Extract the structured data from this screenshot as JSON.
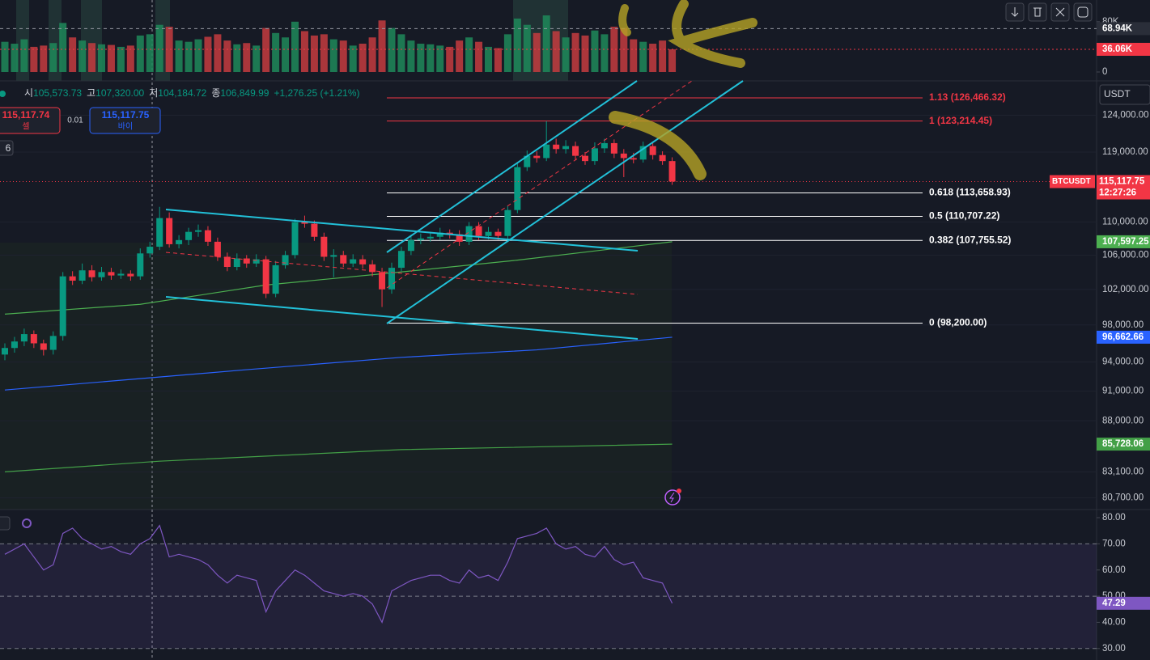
{
  "chart_data": {
    "type": "candlestick",
    "symbol": "BTCUSDT",
    "quote_currency": "USDT",
    "header": [
      {
        "label": "시",
        "value": "105,573.73"
      },
      {
        "label": "고",
        "value": "107,320.00"
      },
      {
        "label": "저",
        "value": "104,184.72"
      },
      {
        "label": "종",
        "value": "106,849.99"
      }
    ],
    "change": "+1,276.25 (+1.21%)",
    "sell": {
      "price": "115,117.74",
      "label": "셀"
    },
    "spread": "0.01",
    "buy": {
      "price": "115,117.75",
      "label": "바이"
    },
    "interval_badge": "6",
    "yscale": "log",
    "ylim": [
      79800,
      128900
    ],
    "yticks": [
      {
        "value": 124000,
        "label": "124,000.00"
      },
      {
        "value": 119000,
        "label": "119,000.00"
      },
      {
        "value": 110000,
        "label": "110,000.00"
      },
      {
        "value": 106000,
        "label": "106,000.00"
      },
      {
        "value": 102000,
        "label": "102,000.00"
      },
      {
        "value": 98000,
        "label": "98,000.00"
      },
      {
        "value": 94000,
        "label": "94,000.00"
      },
      {
        "value": 91000,
        "label": "91,000.00"
      },
      {
        "value": 88000,
        "label": "88,000.00"
      },
      {
        "value": 83100,
        "label": "83,100.00"
      },
      {
        "value": 80700,
        "label": "80,700.00"
      }
    ],
    "grid": true,
    "up_color": "#089981",
    "down_color": "#f23645",
    "open": [
      94800,
      95500,
      96200,
      97000,
      96000,
      95300,
      96800,
      103500,
      103000,
      104200,
      103400,
      104000,
      103600,
      103800,
      103500,
      106200,
      107000,
      110500,
      107300,
      107800,
      108800,
      109000,
      107600,
      105800,
      104600,
      105600,
      105000,
      105500,
      101500,
      104800,
      106000,
      110000,
      109800,
      108200,
      105800,
      106000,
      105000,
      105500,
      104900,
      104000,
      102000,
      104500,
      106500,
      107800,
      108000,
      108200,
      108700,
      108500,
      107600,
      109500,
      108300,
      108800,
      108300,
      111500,
      117000,
      118500,
      118200,
      120000,
      119400,
      119800,
      118500,
      117800,
      119500,
      120200,
      118800,
      118200,
      118000,
      119800,
      118600,
      117800
    ],
    "high": [
      96000,
      96700,
      97600,
      97400,
      96400,
      97300,
      104000,
      104100,
      105000,
      104800,
      104600,
      104500,
      104300,
      104200,
      106800,
      107600,
      111900,
      111200,
      108400,
      109300,
      109700,
      109500,
      108100,
      106300,
      106200,
      106000,
      106100,
      105900,
      105300,
      106500,
      110400,
      110800,
      110200,
      108700,
      106700,
      106500,
      106100,
      106000,
      105400,
      104500,
      105100,
      107000,
      108300,
      108600,
      108800,
      109300,
      109100,
      109000,
      110000,
      110000,
      109400,
      109200,
      112000,
      117600,
      119200,
      119100,
      123200,
      120800,
      120600,
      120400,
      119000,
      120300,
      120800,
      120700,
      119400,
      118900,
      120400,
      120200,
      119100,
      118300
    ],
    "low": [
      94200,
      95000,
      95700,
      95500,
      94700,
      94800,
      96300,
      102500,
      102600,
      102900,
      103000,
      103100,
      103200,
      103000,
      103100,
      105700,
      106600,
      106900,
      106800,
      107200,
      108200,
      107100,
      105300,
      104100,
      104200,
      104500,
      104600,
      101000,
      101100,
      104400,
      105600,
      109300,
      107700,
      105300,
      103400,
      104600,
      104600,
      104400,
      103500,
      100000,
      101500,
      104100,
      106000,
      107300,
      107600,
      107800,
      108000,
      107100,
      107200,
      107800,
      107900,
      107800,
      107900,
      111100,
      116500,
      117600,
      117800,
      118800,
      118800,
      117900,
      117300,
      117300,
      118900,
      118200,
      115700,
      117500,
      117600,
      118000,
      117300,
      114700
    ],
    "close": [
      95500,
      96200,
      97000,
      96000,
      95300,
      96800,
      103500,
      103000,
      104200,
      103400,
      104000,
      103600,
      103800,
      103500,
      106200,
      107000,
      110500,
      107300,
      107800,
      108800,
      109000,
      107600,
      105800,
      104600,
      105600,
      105000,
      105500,
      101500,
      104800,
      106000,
      110000,
      109800,
      108200,
      105800,
      106000,
      105000,
      105500,
      104900,
      104000,
      102000,
      104500,
      106500,
      107800,
      108000,
      108200,
      108700,
      108500,
      107600,
      109500,
      108300,
      108800,
      108300,
      111500,
      117000,
      118500,
      118200,
      120000,
      119400,
      119800,
      118500,
      117800,
      119500,
      120200,
      118800,
      118200,
      118000,
      119800,
      118600,
      117800,
      115117.75
    ],
    "last_price": {
      "value": 115117.75,
      "label": "115,117.75",
      "countdown": "12:27:26"
    },
    "moving_averages": [
      {
        "color": "#4caf50",
        "x": [
          0,
          14,
          27,
          40,
          53,
          69
        ],
        "values": [
          99200,
          100300,
          102500,
          103900,
          105400,
          107597.25
        ],
        "label": "107,597.25"
      },
      {
        "color": "#2962ff",
        "x": [
          0,
          25,
          41,
          55,
          69
        ],
        "values": [
          91100,
          93200,
          94500,
          95300,
          96662.66
        ],
        "label": "96,662.66"
      },
      {
        "color": "#43a047",
        "x": [
          0,
          16,
          41,
          69
        ],
        "values": [
          83100,
          84100,
          85200,
          85728.06
        ],
        "label": "85,728.06"
      }
    ],
    "fib_levels": [
      {
        "value": 126466.32,
        "label": "1.13 (126,466.32)",
        "color": "#f23645"
      },
      {
        "value": 123214.45,
        "label": "1 (123,214.45)",
        "color": "#f23645"
      },
      {
        "value": 113658.93,
        "label": "0.618 (113,658.93)",
        "color": "#ffffff"
      },
      {
        "value": 110707.22,
        "label": "0.5 (110,707.22)",
        "color": "#ffffff"
      },
      {
        "value": 107755.52,
        "label": "0.382 (107,755.52)",
        "color": "#ffffff"
      },
      {
        "value": 98200,
        "label": "0 (98,200.00)",
        "color": "#ffffff"
      }
    ],
    "volume": {
      "values": [
        48000,
        45000,
        52000,
        40000,
        42000,
        46000,
        78000,
        55000,
        50000,
        46000,
        44000,
        43000,
        40000,
        42000,
        58000,
        60000,
        75000,
        72000,
        50000,
        48000,
        52000,
        56000,
        60000,
        50000,
        44000,
        46000,
        42000,
        70000,
        62000,
        55000,
        80000,
        65000,
        58000,
        60000,
        52000,
        50000,
        42000,
        45000,
        55000,
        82000,
        70000,
        60000,
        50000,
        45000,
        44000,
        42000,
        40000,
        50000,
        55000,
        48000,
        40000,
        38000,
        60000,
        85000,
        75000,
        62000,
        90000,
        65000,
        55000,
        62000,
        58000,
        66000,
        60000,
        72000,
        70000,
        52000,
        48000,
        45000,
        50000,
        36060
      ],
      "ylim": [
        0,
        114500
      ],
      "yticks": [
        0,
        {
          "value": 80000,
          "label": "80K"
        }
      ],
      "ma": {
        "value": 68940,
        "label": "68.94K"
      },
      "last_label": "36.06K"
    },
    "rsi": {
      "values": [
        66,
        68,
        70,
        65,
        60,
        62,
        74,
        76,
        72,
        70,
        68,
        69,
        67,
        66,
        70,
        72,
        77,
        65,
        66,
        65,
        64,
        62,
        58,
        55,
        58,
        57,
        56,
        44,
        52,
        56,
        60,
        58,
        55,
        52,
        51,
        50,
        51,
        50,
        47,
        40,
        52,
        54,
        56,
        57,
        58,
        58,
        56,
        55,
        60,
        57,
        58,
        56,
        63,
        72,
        73,
        74,
        76,
        70,
        68,
        69,
        66,
        65,
        69,
        64,
        62,
        63,
        57,
        56,
        55,
        47.29
      ],
      "color": "#7e57c2",
      "ylim": [
        25.6,
        83.1
      ],
      "yticks": [
        {
          "value": 80,
          "label": "80.00"
        },
        {
          "value": 70,
          "label": "70.00"
        },
        {
          "value": 60,
          "label": "60.00"
        },
        {
          "value": 50,
          "label": "50.00"
        },
        {
          "value": 40,
          "label": "40.00"
        },
        {
          "value": 30,
          "label": "30.00"
        }
      ],
      "levels": [
        70,
        50,
        30
      ],
      "last_label": "47.29"
    }
  }
}
